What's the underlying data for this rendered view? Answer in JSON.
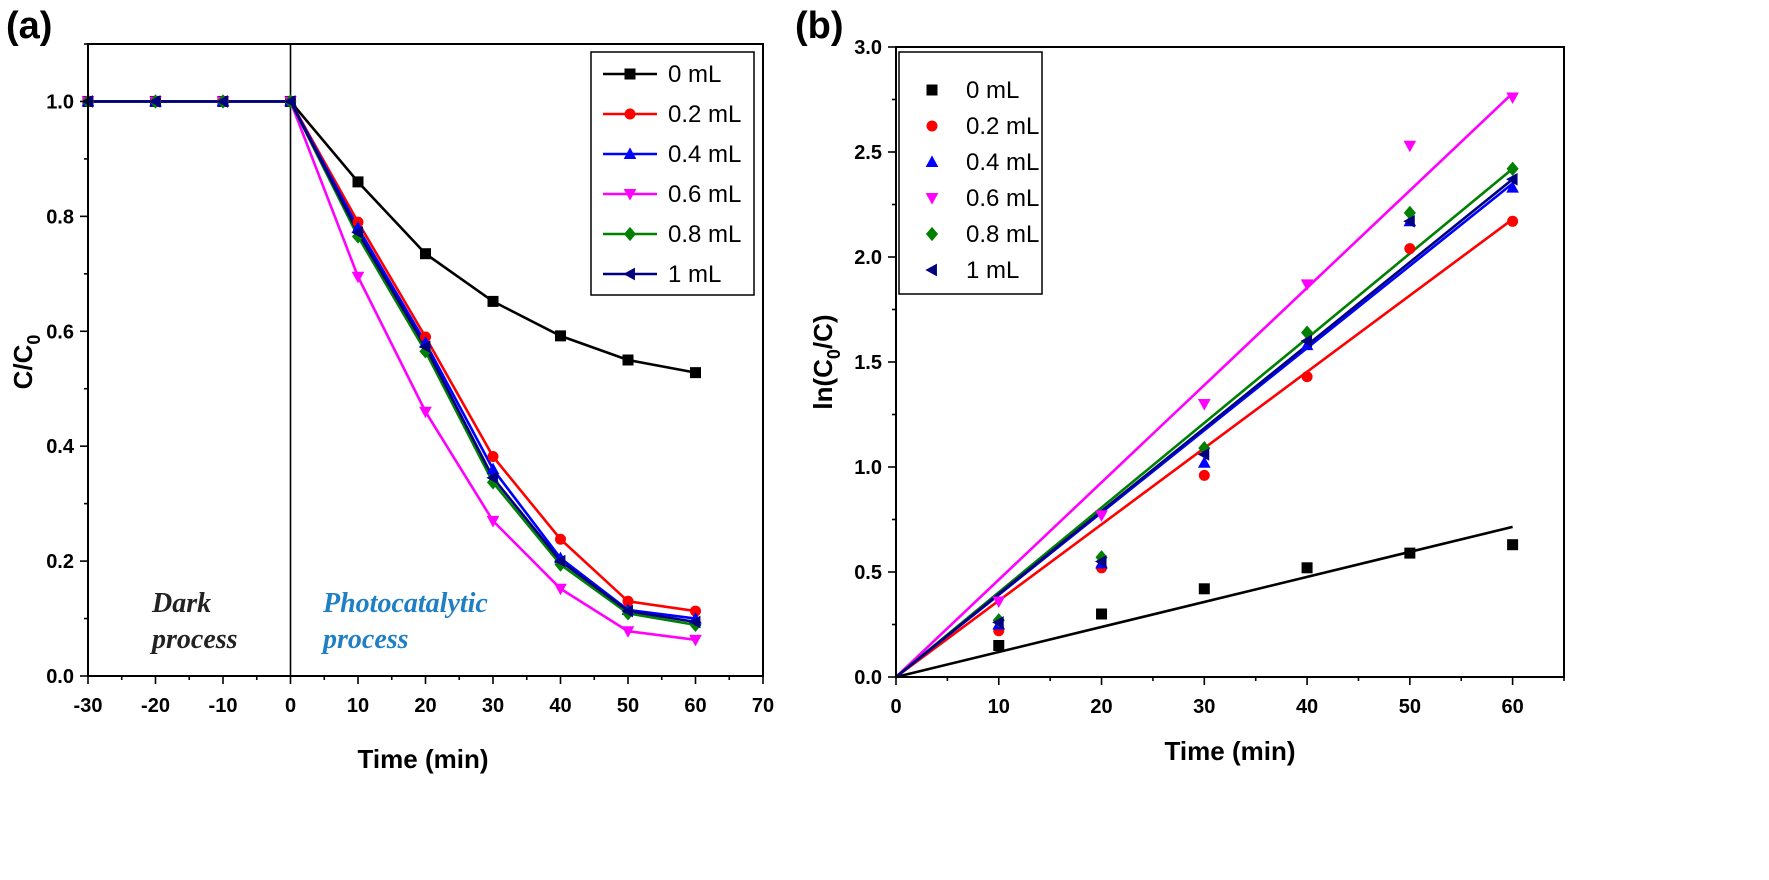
{
  "chart_data": [
    {
      "panel": "(a)",
      "type": "line",
      "xlabel": "Time (min)",
      "ylabel": "C/C0",
      "ylabel_main": "C/C",
      "ylabel_sub": "0",
      "xlim": [
        -30,
        70
      ],
      "ylim": [
        0.0,
        1.1
      ],
      "xticks": [
        -30,
        -20,
        -10,
        0,
        10,
        20,
        30,
        40,
        50,
        60,
        70
      ],
      "yticks": [
        0.0,
        0.2,
        0.4,
        0.6,
        0.8,
        1.0
      ],
      "xtick_labels": [
        "-30",
        "-20",
        "-10",
        "0",
        "10",
        "20",
        "30",
        "40",
        "50",
        "60",
        "70"
      ],
      "ytick_labels": [
        "0.0",
        "0.2",
        "0.4",
        "0.6",
        "0.8",
        "1.0"
      ],
      "x": [
        -30,
        -20,
        -10,
        0,
        10,
        20,
        30,
        40,
        50,
        60
      ],
      "divider_x": 0,
      "legend_position": "top-right",
      "annotations": [
        {
          "lines": [
            "Dark",
            "process"
          ],
          "color": "#222222"
        },
        {
          "lines": [
            "Photocatalytic",
            "process"
          ],
          "color": "#1f7fc4"
        }
      ],
      "series": [
        {
          "name": "0 mL",
          "color": "#000000",
          "marker": "square",
          "values": [
            1.0,
            1.0,
            1.0,
            1.0,
            0.86,
            0.735,
            0.652,
            0.592,
            0.55,
            0.528
          ]
        },
        {
          "name": "0.2 mL",
          "color": "#ff0000",
          "marker": "circle",
          "values": [
            1.0,
            1.0,
            1.0,
            1.0,
            0.79,
            0.59,
            0.382,
            0.238,
            0.13,
            0.113
          ]
        },
        {
          "name": "0.4 mL",
          "color": "#0000ff",
          "marker": "triangle-up",
          "values": [
            1.0,
            1.0,
            1.0,
            1.0,
            0.78,
            0.58,
            0.36,
            0.205,
            0.115,
            0.1
          ]
        },
        {
          "name": "0.6 mL",
          "color": "#ff00ff",
          "marker": "triangle-down",
          "values": [
            1.0,
            1.0,
            1.0,
            1.0,
            0.695,
            0.46,
            0.27,
            0.152,
            0.078,
            0.063
          ]
        },
        {
          "name": "0.8 mL",
          "color": "#008000",
          "marker": "diamond",
          "values": [
            1.0,
            1.0,
            1.0,
            1.0,
            0.765,
            0.565,
            0.337,
            0.194,
            0.109,
            0.089
          ]
        },
        {
          "name": "1 mL",
          "color": "#000080",
          "marker": "triangle-left",
          "values": [
            1.0,
            1.0,
            1.0,
            1.0,
            0.772,
            0.573,
            0.345,
            0.2,
            0.113,
            0.094
          ]
        }
      ]
    },
    {
      "panel": "(b)",
      "type": "scatter",
      "xlabel": "Time (min)",
      "ylabel": "ln(C0/C)",
      "ylabel_pre": "ln(C",
      "ylabel_sub": "0",
      "ylabel_post": "/C)",
      "xlim": [
        0,
        65
      ],
      "ylim": [
        0.0,
        3.0
      ],
      "xticks": [
        0,
        10,
        20,
        30,
        40,
        50,
        60
      ],
      "yticks": [
        0.0,
        0.5,
        1.0,
        1.5,
        2.0,
        2.5,
        3.0
      ],
      "xtick_labels": [
        "0",
        "10",
        "20",
        "30",
        "40",
        "50",
        "60"
      ],
      "ytick_labels": [
        "0.0",
        "0.5",
        "1.0",
        "1.5",
        "2.0",
        "2.5",
        "3.0"
      ],
      "x": [
        0,
        10,
        20,
        30,
        40,
        50,
        60
      ],
      "legend_position": "top-left",
      "series": [
        {
          "name": "0 mL",
          "color": "#000000",
          "marker": "square",
          "values": [
            0,
            0.15,
            0.3,
            0.42,
            0.52,
            0.59,
            0.63
          ],
          "fit": [
            0,
            0.715
          ]
        },
        {
          "name": "0.2 mL",
          "color": "#ff0000",
          "marker": "circle",
          "values": [
            0,
            0.22,
            0.52,
            0.96,
            1.43,
            2.04,
            2.17
          ],
          "fit": [
            0,
            2.18
          ]
        },
        {
          "name": "0.4 mL",
          "color": "#0000ff",
          "marker": "triangle-up",
          "values": [
            0,
            0.25,
            0.54,
            1.02,
            1.58,
            2.17,
            2.33
          ],
          "fit": [
            0,
            2.35
          ]
        },
        {
          "name": "0.6 mL",
          "color": "#ff00ff",
          "marker": "triangle-down",
          "values": [
            0,
            0.36,
            0.77,
            1.3,
            1.87,
            2.53,
            2.76
          ],
          "fit": [
            0,
            2.78
          ]
        },
        {
          "name": "0.8 mL",
          "color": "#008000",
          "marker": "diamond",
          "values": [
            0,
            0.27,
            0.57,
            1.09,
            1.64,
            2.21,
            2.42
          ],
          "fit": [
            0,
            2.42
          ]
        },
        {
          "name": "1 mL",
          "color": "#000080",
          "marker": "triangle-left",
          "values": [
            0,
            0.26,
            0.55,
            1.06,
            1.6,
            2.17,
            2.37
          ],
          "fit": [
            0,
            2.37
          ]
        }
      ]
    }
  ]
}
